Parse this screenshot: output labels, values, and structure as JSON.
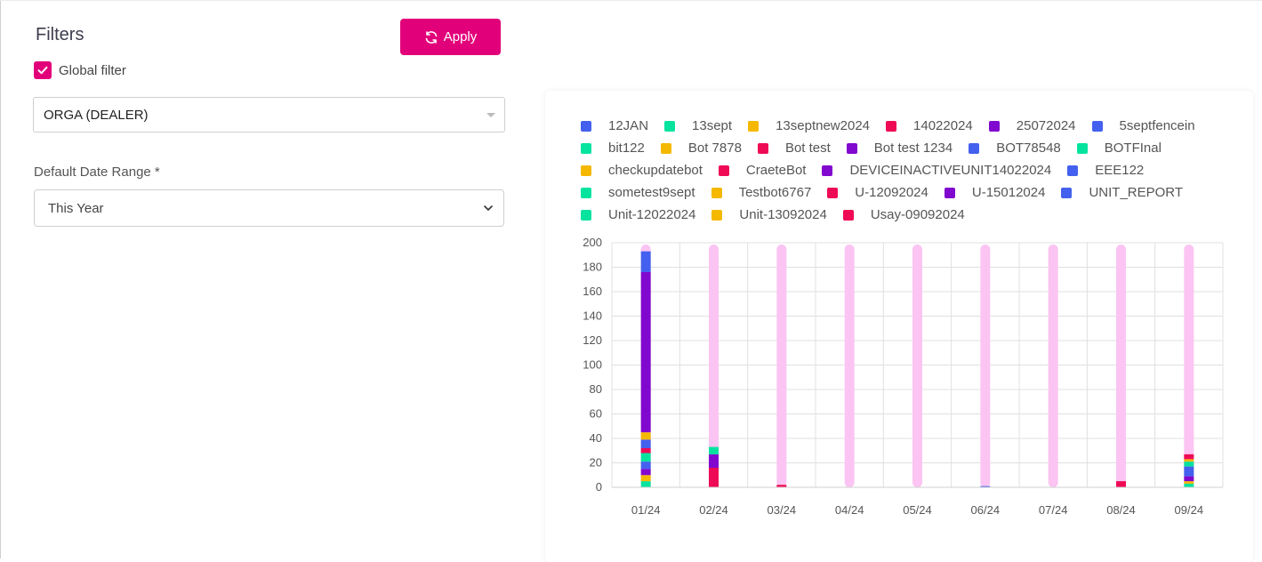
{
  "filters": {
    "title": "Filters",
    "apply_label": "Apply",
    "global_filter_label": "Global filter",
    "global_filter_checked": true,
    "org_value": "ORGA (DEALER)",
    "date_range_label": "Default Date Range *",
    "date_range_value": "This Year"
  },
  "colors": {
    "accent": "#e2007a",
    "blue": "#4361ee",
    "teal": "#06e39f",
    "amber": "#f5b800",
    "red": "#ef0a55",
    "purple": "#8108cf",
    "track": "#fbc4f2",
    "grid": "#e0e0e0"
  },
  "chart_data": {
    "type": "bar",
    "stacked": true,
    "categories": [
      "01/24",
      "02/24",
      "03/24",
      "04/24",
      "05/24",
      "06/24",
      "07/24",
      "08/24",
      "09/24"
    ],
    "ylim": [
      0,
      200
    ],
    "yticks": [
      0,
      20,
      40,
      60,
      80,
      100,
      120,
      140,
      160,
      180,
      200
    ],
    "grid": true,
    "legend_position": "top",
    "background_track": true,
    "series": [
      {
        "name": "12JAN",
        "color": "#4361ee"
      },
      {
        "name": "13sept",
        "color": "#06e39f"
      },
      {
        "name": "13septnew2024",
        "color": "#f5b800"
      },
      {
        "name": "14022024",
        "color": "#ef0a55"
      },
      {
        "name": "25072024",
        "color": "#8108cf"
      },
      {
        "name": "5septfencein",
        "color": "#4361ee"
      },
      {
        "name": "bit122",
        "color": "#06e39f"
      },
      {
        "name": "Bot 7878",
        "color": "#f5b800"
      },
      {
        "name": "Bot test",
        "color": "#ef0a55"
      },
      {
        "name": "Bot test 1234",
        "color": "#8108cf"
      },
      {
        "name": "BOT78548",
        "color": "#4361ee"
      },
      {
        "name": "BOTFInal",
        "color": "#06e39f"
      },
      {
        "name": "checkupdatebot",
        "color": "#f5b800"
      },
      {
        "name": "CraeteBot",
        "color": "#ef0a55"
      },
      {
        "name": "DEVICEINACTIVEUNIT14022024",
        "color": "#8108cf"
      },
      {
        "name": "EEE122",
        "color": "#4361ee"
      },
      {
        "name": "sometest9sept",
        "color": "#06e39f"
      },
      {
        "name": "Testbot6767",
        "color": "#f5b800"
      },
      {
        "name": "U-12092024",
        "color": "#ef0a55"
      },
      {
        "name": "U-15012024",
        "color": "#8108cf"
      },
      {
        "name": "UNIT_REPORT",
        "color": "#4361ee"
      },
      {
        "name": "Unit-12022024",
        "color": "#06e39f"
      },
      {
        "name": "Unit-13092024",
        "color": "#f5b800"
      },
      {
        "name": "Usay-09092024",
        "color": "#ef0a55"
      }
    ],
    "stacks": [
      [
        {
          "color": "#06e39f",
          "value": 5
        },
        {
          "color": "#f5b800",
          "value": 5
        },
        {
          "color": "#8108cf",
          "value": 5
        },
        {
          "color": "#4361ee",
          "value": 6
        },
        {
          "color": "#06e39f",
          "value": 7
        },
        {
          "color": "#ef0a55",
          "value": 4
        },
        {
          "color": "#4361ee",
          "value": 7
        },
        {
          "color": "#f5b800",
          "value": 6
        },
        {
          "color": "#8108cf",
          "value": 131
        },
        {
          "color": "#4361ee",
          "value": 17
        }
      ],
      [
        {
          "color": "#ef0a55",
          "value": 16
        },
        {
          "color": "#8108cf",
          "value": 11
        },
        {
          "color": "#06e39f",
          "value": 6
        }
      ],
      [
        {
          "color": "#ef0a55",
          "value": 2
        }
      ],
      [],
      [],
      [
        {
          "color": "#4361ee",
          "value": 1
        }
      ],
      [],
      [
        {
          "color": "#ef0a55",
          "value": 5
        }
      ],
      [
        {
          "color": "#06e39f",
          "value": 3
        },
        {
          "color": "#f5b800",
          "value": 2
        },
        {
          "color": "#8108cf",
          "value": 4
        },
        {
          "color": "#4361ee",
          "value": 8
        },
        {
          "color": "#06e39f",
          "value": 4
        },
        {
          "color": "#f5b800",
          "value": 2
        },
        {
          "color": "#ef0a55",
          "value": 4
        }
      ]
    ]
  }
}
